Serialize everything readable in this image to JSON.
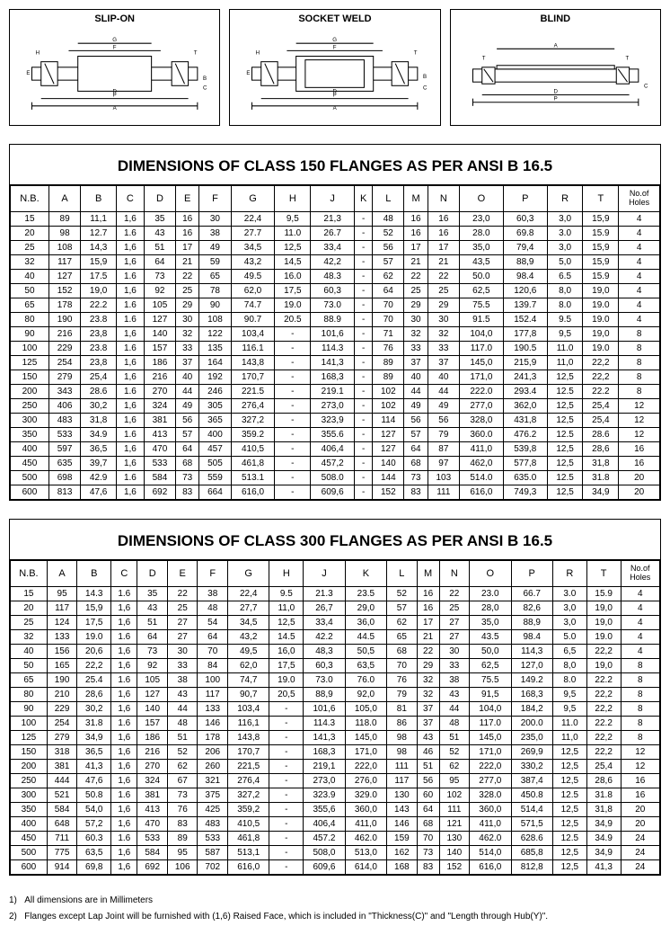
{
  "diagrams": {
    "slip_on": {
      "title": "SLIP-ON"
    },
    "socket_weld": {
      "title": "SOCKET WELD"
    },
    "blind": {
      "title": "BLIND"
    }
  },
  "table150": {
    "title": "DIMENSIONS OF CLASS 150 FLANGES AS PER ANSI B 16.5",
    "headers": [
      "N.B.",
      "A",
      "B",
      "C",
      "D",
      "E",
      "F",
      "G",
      "H",
      "J",
      "K",
      "L",
      "M",
      "N",
      "O",
      "P",
      "R",
      "T",
      "No.of Holes"
    ],
    "rows": [
      [
        "15",
        "89",
        "11,1",
        "1,6",
        "35",
        "16",
        "30",
        "22,4",
        "9,5",
        "21,3",
        "-",
        "48",
        "16",
        "16",
        "23,0",
        "60,3",
        "3,0",
        "15,9",
        "4"
      ],
      [
        "20",
        "98",
        "12.7",
        "1.6",
        "43",
        "16",
        "38",
        "27.7",
        "11.0",
        "26.7",
        "-",
        "52",
        "16",
        "16",
        "28.0",
        "69.8",
        "3.0",
        "15.9",
        "4"
      ],
      [
        "25",
        "108",
        "14,3",
        "1,6",
        "51",
        "17",
        "49",
        "34,5",
        "12,5",
        "33,4",
        "-",
        "56",
        "17",
        "17",
        "35,0",
        "79,4",
        "3,0",
        "15,9",
        "4"
      ],
      [
        "32",
        "117",
        "15,9",
        "1,6",
        "64",
        "21",
        "59",
        "43,2",
        "14,5",
        "42,2",
        "-",
        "57",
        "21",
        "21",
        "43,5",
        "88,9",
        "5,0",
        "15,9",
        "4"
      ],
      [
        "40",
        "127",
        "17.5",
        "1.6",
        "73",
        "22",
        "65",
        "49.5",
        "16.0",
        "48.3",
        "-",
        "62",
        "22",
        "22",
        "50.0",
        "98.4",
        "6.5",
        "15.9",
        "4"
      ],
      [
        "50",
        "152",
        "19,0",
        "1,6",
        "92",
        "25",
        "78",
        "62,0",
        "17,5",
        "60,3",
        "-",
        "64",
        "25",
        "25",
        "62,5",
        "120,6",
        "8,0",
        "19,0",
        "4"
      ],
      [
        "65",
        "178",
        "22.2",
        "1.6",
        "105",
        "29",
        "90",
        "74.7",
        "19.0",
        "73.0",
        "-",
        "70",
        "29",
        "29",
        "75.5",
        "139.7",
        "8.0",
        "19.0",
        "4"
      ],
      [
        "80",
        "190",
        "23.8",
        "1.6",
        "127",
        "30",
        "108",
        "90.7",
        "20.5",
        "88.9",
        "-",
        "70",
        "30",
        "30",
        "91.5",
        "152.4",
        "9.5",
        "19.0",
        "4"
      ],
      [
        "90",
        "216",
        "23,8",
        "1,6",
        "140",
        "32",
        "122",
        "103,4",
        "-",
        "101,6",
        "-",
        "71",
        "32",
        "32",
        "104,0",
        "177,8",
        "9,5",
        "19,0",
        "8"
      ],
      [
        "100",
        "229",
        "23.8",
        "1.6",
        "157",
        "33",
        "135",
        "116.1",
        "-",
        "114.3",
        "-",
        "76",
        "33",
        "33",
        "117.0",
        "190.5",
        "11.0",
        "19.0",
        "8"
      ],
      [
        "125",
        "254",
        "23,8",
        "1,6",
        "186",
        "37",
        "164",
        "143,8",
        "-",
        "141,3",
        "-",
        "89",
        "37",
        "37",
        "145,0",
        "215,9",
        "11,0",
        "22,2",
        "8"
      ],
      [
        "150",
        "279",
        "25,4",
        "1,6",
        "216",
        "40",
        "192",
        "170,7",
        "-",
        "168,3",
        "-",
        "89",
        "40",
        "40",
        "171,0",
        "241,3",
        "12,5",
        "22,2",
        "8"
      ],
      [
        "200",
        "343",
        "28.6",
        "1.6",
        "270",
        "44",
        "246",
        "221.5",
        "-",
        "219.1",
        "-",
        "102",
        "44",
        "44",
        "222.0",
        "293.4",
        "12.5",
        "22.2",
        "8"
      ],
      [
        "250",
        "406",
        "30,2",
        "1,6",
        "324",
        "49",
        "305",
        "276,4",
        "-",
        "273,0",
        "-",
        "102",
        "49",
        "49",
        "277,0",
        "362,0",
        "12,5",
        "25,4",
        "12"
      ],
      [
        "300",
        "483",
        "31,8",
        "1,6",
        "381",
        "56",
        "365",
        "327,2",
        "-",
        "323,9",
        "-",
        "114",
        "56",
        "56",
        "328,0",
        "431,8",
        "12,5",
        "25,4",
        "12"
      ],
      [
        "350",
        "533",
        "34.9",
        "1.6",
        "413",
        "57",
        "400",
        "359.2",
        "-",
        "355.6",
        "-",
        "127",
        "57",
        "79",
        "360.0",
        "476.2",
        "12.5",
        "28.6",
        "12"
      ],
      [
        "400",
        "597",
        "36,5",
        "1,6",
        "470",
        "64",
        "457",
        "410,5",
        "-",
        "406,4",
        "-",
        "127",
        "64",
        "87",
        "411,0",
        "539,8",
        "12,5",
        "28,6",
        "16"
      ],
      [
        "450",
        "635",
        "39,7",
        "1,6",
        "533",
        "68",
        "505",
        "461,8",
        "-",
        "457,2",
        "-",
        "140",
        "68",
        "97",
        "462,0",
        "577,8",
        "12,5",
        "31,8",
        "16"
      ],
      [
        "500",
        "698",
        "42.9",
        "1.6",
        "584",
        "73",
        "559",
        "513.1",
        "-",
        "508.0",
        "-",
        "144",
        "73",
        "103",
        "514.0",
        "635.0",
        "12.5",
        "31.8",
        "20"
      ],
      [
        "600",
        "813",
        "47,6",
        "1,6",
        "692",
        "83",
        "664",
        "616,0",
        "-",
        "609,6",
        "-",
        "152",
        "83",
        "111",
        "616,0",
        "749,3",
        "12,5",
        "34,9",
        "20"
      ]
    ]
  },
  "table300": {
    "title": "DIMENSIONS OF CLASS 300 FLANGES AS PER ANSI B 16.5",
    "headers": [
      "N.B.",
      "A",
      "B",
      "C",
      "D",
      "E",
      "F",
      "G",
      "H",
      "J",
      "K",
      "L",
      "M",
      "N",
      "O",
      "P",
      "R",
      "T",
      "No.of Holes"
    ],
    "rows": [
      [
        "15",
        "95",
        "14.3",
        "1.6",
        "35",
        "22",
        "38",
        "22,4",
        "9.5",
        "21.3",
        "23.5",
        "52",
        "16",
        "22",
        "23.0",
        "66.7",
        "3.0",
        "15.9",
        "4"
      ],
      [
        "20",
        "117",
        "15,9",
        "1,6",
        "43",
        "25",
        "48",
        "27,7",
        "11,0",
        "26,7",
        "29,0",
        "57",
        "16",
        "25",
        "28,0",
        "82,6",
        "3,0",
        "19,0",
        "4"
      ],
      [
        "25",
        "124",
        "17,5",
        "1,6",
        "51",
        "27",
        "54",
        "34,5",
        "12,5",
        "33,4",
        "36,0",
        "62",
        "17",
        "27",
        "35,0",
        "88,9",
        "3,0",
        "19,0",
        "4"
      ],
      [
        "32",
        "133",
        "19.0",
        "1.6",
        "64",
        "27",
        "64",
        "43,2",
        "14.5",
        "42.2",
        "44.5",
        "65",
        "21",
        "27",
        "43.5",
        "98.4",
        "5.0",
        "19.0",
        "4"
      ],
      [
        "40",
        "156",
        "20,6",
        "1,6",
        "73",
        "30",
        "70",
        "49,5",
        "16,0",
        "48,3",
        "50,5",
        "68",
        "22",
        "30",
        "50,0",
        "114,3",
        "6,5",
        "22,2",
        "4"
      ],
      [
        "50",
        "165",
        "22,2",
        "1,6",
        "92",
        "33",
        "84",
        "62,0",
        "17,5",
        "60,3",
        "63,5",
        "70",
        "29",
        "33",
        "62,5",
        "127,0",
        "8,0",
        "19,0",
        "8"
      ],
      [
        "65",
        "190",
        "25.4",
        "1.6",
        "105",
        "38",
        "100",
        "74,7",
        "19.0",
        "73.0",
        "76.0",
        "76",
        "32",
        "38",
        "75.5",
        "149.2",
        "8.0",
        "22.2",
        "8"
      ],
      [
        "80",
        "210",
        "28,6",
        "1,6",
        "127",
        "43",
        "117",
        "90,7",
        "20,5",
        "88,9",
        "92,0",
        "79",
        "32",
        "43",
        "91,5",
        "168,3",
        "9,5",
        "22,2",
        "8"
      ],
      [
        "90",
        "229",
        "30,2",
        "1,6",
        "140",
        "44",
        "133",
        "103,4",
        "-",
        "101,6",
        "105,0",
        "81",
        "37",
        "44",
        "104,0",
        "184,2",
        "9,5",
        "22,2",
        "8"
      ],
      [
        "100",
        "254",
        "31.8",
        "1.6",
        "157",
        "48",
        "146",
        "116,1",
        "-",
        "114.3",
        "118.0",
        "86",
        "37",
        "48",
        "117.0",
        "200.0",
        "11.0",
        "22.2",
        "8"
      ],
      [
        "125",
        "279",
        "34,9",
        "1,6",
        "186",
        "51",
        "178",
        "143,8",
        "-",
        "141,3",
        "145,0",
        "98",
        "43",
        "51",
        "145,0",
        "235,0",
        "11,0",
        "22,2",
        "8"
      ],
      [
        "150",
        "318",
        "36,5",
        "1,6",
        "216",
        "52",
        "206",
        "170,7",
        "-",
        "168,3",
        "171,0",
        "98",
        "46",
        "52",
        "171,0",
        "269,9",
        "12,5",
        "22,2",
        "12"
      ],
      [
        "200",
        "381",
        "41,3",
        "1,6",
        "270",
        "62",
        "260",
        "221,5",
        "-",
        "219,1",
        "222,0",
        "111",
        "51",
        "62",
        "222,0",
        "330,2",
        "12,5",
        "25,4",
        "12"
      ],
      [
        "250",
        "444",
        "47,6",
        "1,6",
        "324",
        "67",
        "321",
        "276,4",
        "-",
        "273,0",
        "276,0",
        "117",
        "56",
        "95",
        "277,0",
        "387,4",
        "12,5",
        "28,6",
        "16"
      ],
      [
        "300",
        "521",
        "50.8",
        "1.6",
        "381",
        "73",
        "375",
        "327,2",
        "-",
        "323.9",
        "329.0",
        "130",
        "60",
        "102",
        "328.0",
        "450.8",
        "12.5",
        "31.8",
        "16"
      ],
      [
        "350",
        "584",
        "54,0",
        "1,6",
        "413",
        "76",
        "425",
        "359,2",
        "-",
        "355,6",
        "360,0",
        "143",
        "64",
        "111",
        "360,0",
        "514,4",
        "12,5",
        "31,8",
        "20"
      ],
      [
        "400",
        "648",
        "57,2",
        "1,6",
        "470",
        "83",
        "483",
        "410,5",
        "-",
        "406,4",
        "411,0",
        "146",
        "68",
        "121",
        "411,0",
        "571,5",
        "12,5",
        "34,9",
        "20"
      ],
      [
        "450",
        "711",
        "60.3",
        "1.6",
        "533",
        "89",
        "533",
        "461,8",
        "-",
        "457.2",
        "462.0",
        "159",
        "70",
        "130",
        "462.0",
        "628.6",
        "12.5",
        "34.9",
        "24"
      ],
      [
        "500",
        "775",
        "63,5",
        "1,6",
        "584",
        "95",
        "587",
        "513,1",
        "-",
        "508,0",
        "513,0",
        "162",
        "73",
        "140",
        "514,0",
        "685,8",
        "12,5",
        "34,9",
        "24"
      ],
      [
        "600",
        "914",
        "69,8",
        "1,6",
        "692",
        "106",
        "702",
        "616,0",
        "-",
        "609,6",
        "614,0",
        "168",
        "83",
        "152",
        "616,0",
        "812,8",
        "12,5",
        "41,3",
        "24"
      ]
    ]
  },
  "footnotes": {
    "n1": "1)   All dimensions are in Millimeters",
    "n2": "2)   Flanges except Lap Joint will be furnished with (1,6) Raised Face, which is  included in \"Thickness(C)\" and \"Length through Hub(Y)\"."
  },
  "style": {
    "border_color": "#000000",
    "bg": "#ffffff",
    "font": "Arial",
    "title_fontsize": 17,
    "header_fontsize": 11,
    "cell_fontsize": 10,
    "diagram_title_fontsize": 11,
    "footnote_fontsize": 10
  }
}
